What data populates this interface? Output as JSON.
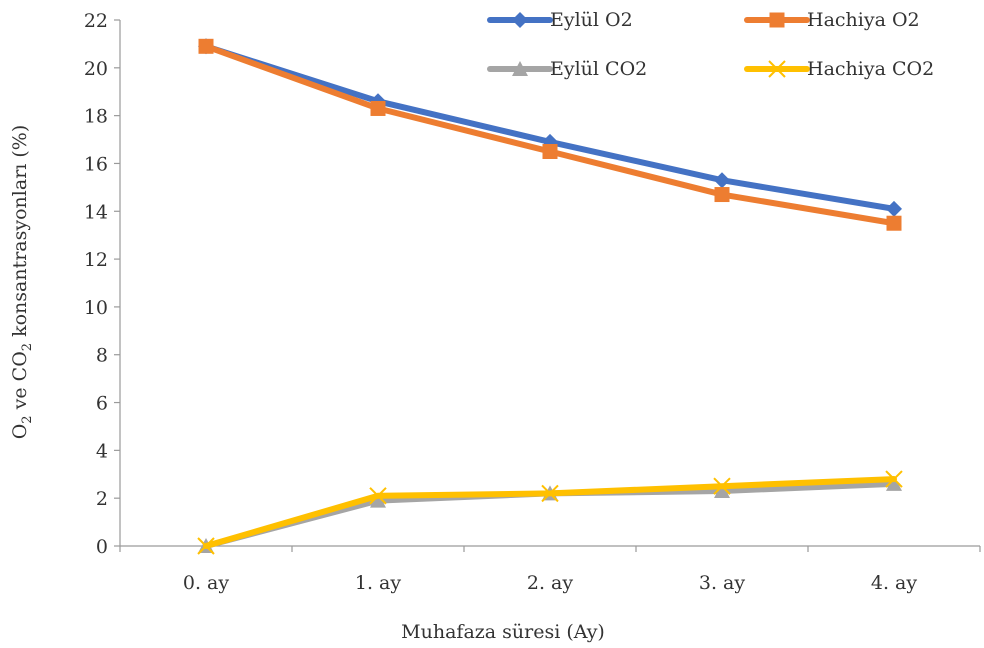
{
  "chart_data": {
    "type": "line",
    "title": "",
    "xlabel": "Muhafaza süresi (Ay)",
    "ylabel": {
      "parts": [
        "O",
        "2",
        " ve CO",
        "2",
        " konsantrasyonları (%)"
      ]
    },
    "categories": [
      "0. ay",
      "1. ay",
      "2. ay",
      "3. ay",
      "4. ay"
    ],
    "ylim": [
      0,
      22
    ],
    "yticks": [
      0,
      2,
      4,
      6,
      8,
      10,
      12,
      14,
      16,
      18,
      20,
      22
    ],
    "grid": false,
    "legend_position": "top-right",
    "series": [
      {
        "name": "Eylül O2",
        "values": [
          20.9,
          18.6,
          16.9,
          15.3,
          14.1
        ],
        "color": "#4472C4",
        "marker": "diamond"
      },
      {
        "name": "Hachiya O2",
        "values": [
          20.9,
          18.3,
          16.5,
          14.7,
          13.5
        ],
        "color": "#ED7D31",
        "marker": "square"
      },
      {
        "name": "Eylül CO2",
        "values": [
          0.0,
          1.9,
          2.2,
          2.3,
          2.6
        ],
        "color": "#A5A5A5",
        "marker": "triangle"
      },
      {
        "name": "Hachiya CO2",
        "values": [
          0.0,
          2.1,
          2.2,
          2.5,
          2.8
        ],
        "color": "#FFC000",
        "marker": "x"
      }
    ]
  }
}
